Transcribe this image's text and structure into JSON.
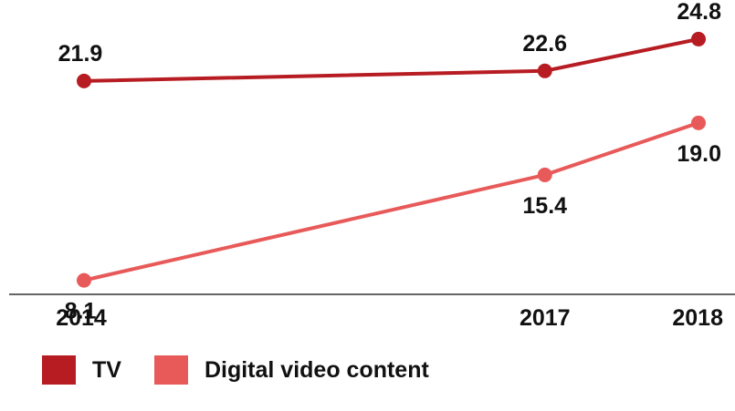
{
  "chart_data": {
    "type": "line",
    "x": [
      "2014",
      "2017",
      "2018"
    ],
    "series": [
      {
        "name": "TV",
        "values": [
          21.9,
          22.6,
          24.8
        ],
        "color": "#b71c22",
        "labels": [
          "21.9",
          "22.6",
          "24.8"
        ]
      },
      {
        "name": "Digital video content",
        "values": [
          8.1,
          15.4,
          19.0
        ],
        "color": "#e85a5a",
        "labels": [
          "8.1",
          "15.4",
          "19.0"
        ]
      }
    ],
    "title": "",
    "xlabel": "",
    "ylabel": "",
    "ylim": [
      0,
      26
    ],
    "grid": false,
    "legend": "bottom-left"
  }
}
